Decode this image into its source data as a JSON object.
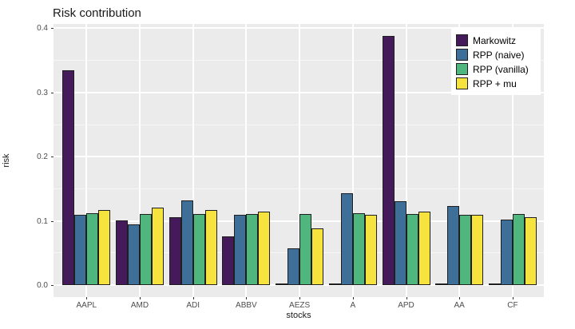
{
  "chart_data": {
    "type": "bar",
    "title": "Risk contribution",
    "xlabel": "stocks",
    "ylabel": "risk",
    "categories": [
      "AAPL",
      "AMD",
      "ADI",
      "ABBV",
      "AEZS",
      "A",
      "APD",
      "AA",
      "CF"
    ],
    "series": [
      {
        "name": "Markowitz",
        "color": "#441a5b",
        "values": [
          0.334,
          0.101,
          0.106,
          0.076,
          0.002,
          0.002,
          0.388,
          0.002,
          0.002
        ]
      },
      {
        "name": "RPP (naive)",
        "color": "#3d6f99",
        "values": [
          0.109,
          0.095,
          0.132,
          0.109,
          0.057,
          0.143,
          0.131,
          0.123,
          0.102
        ]
      },
      {
        "name": "RPP (vanilla)",
        "color": "#4fb67e",
        "values": [
          0.112,
          0.111,
          0.111,
          0.111,
          0.111,
          0.112,
          0.111,
          0.11,
          0.111
        ]
      },
      {
        "name": "RPP + mu",
        "color": "#f7e33e",
        "values": [
          0.117,
          0.121,
          0.117,
          0.115,
          0.088,
          0.11,
          0.115,
          0.11,
          0.106
        ]
      }
    ],
    "ylim": [
      0,
      0.42
    ],
    "yticks": [
      0.0,
      0.1,
      0.2,
      0.3,
      0.4
    ],
    "ytick_labels": [
      "0.0",
      "0.1",
      "0.2",
      "0.3",
      "0.4"
    ],
    "grid": true,
    "legend_position": "top-right-inside",
    "colors": {
      "panel_background": "#ebebeb",
      "grid": "#ffffff",
      "bar_border": "#1f1f1f",
      "tick_text": "#4d4d4d",
      "title_text": "#1a1a1a"
    }
  }
}
